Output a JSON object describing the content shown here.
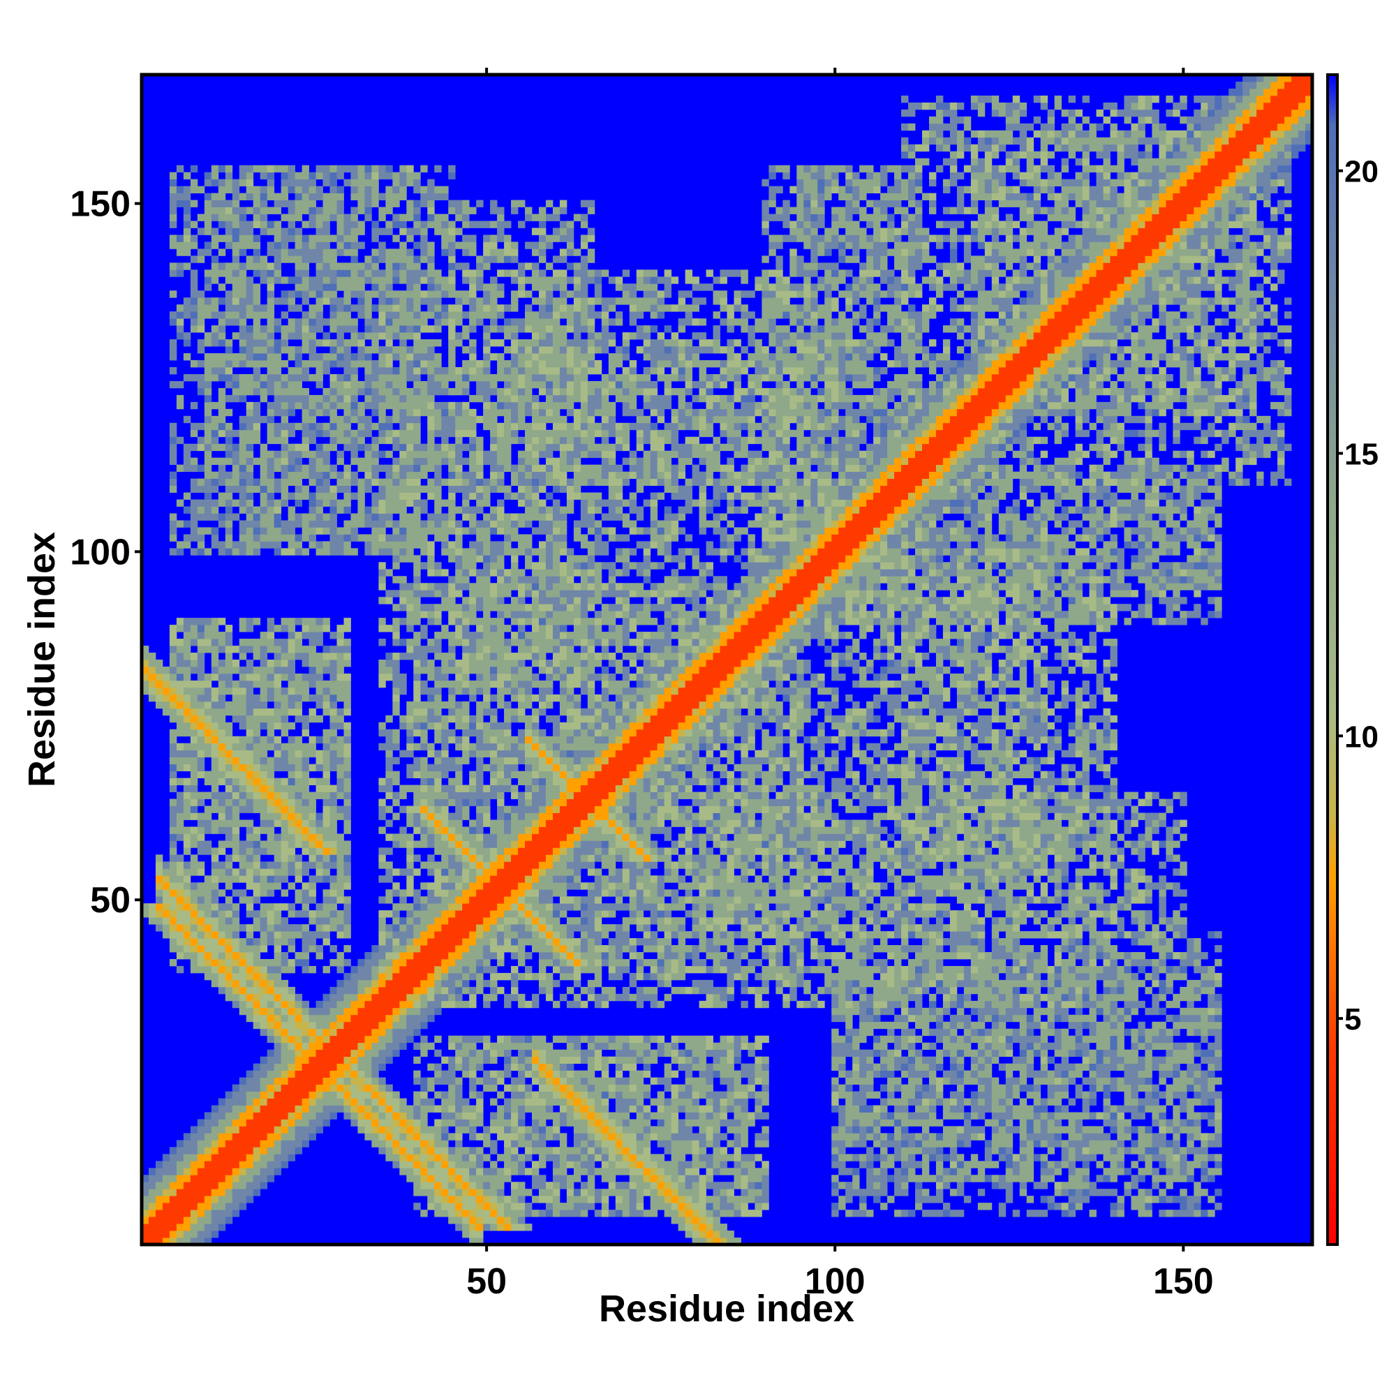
{
  "chart_data": {
    "type": "heatmap",
    "title": "",
    "xlabel": "Residue index",
    "ylabel": "Residue index",
    "n_residues": 168,
    "xlim": [
      1,
      168
    ],
    "ylim": [
      1,
      168
    ],
    "x_ticks": [
      50,
      100,
      150
    ],
    "y_ticks": [
      50,
      100,
      150
    ],
    "colorbar": {
      "ticks": [
        5,
        10,
        15,
        20
      ],
      "range": [
        1,
        21.7
      ],
      "stops": [
        {
          "value": 1,
          "color": "#ff0000"
        },
        {
          "value": 4.5,
          "color": "#ff3a00"
        },
        {
          "value": 7.5,
          "color": "#ffa000"
        },
        {
          "value": 8.6,
          "color": "#c8b44a"
        },
        {
          "value": 10.5,
          "color": "#a8bb86"
        },
        {
          "value": 14,
          "color": "#8fa88a"
        },
        {
          "value": 18,
          "color": "#6f86a8"
        },
        {
          "value": 20.8,
          "color": "#4f6fb8"
        },
        {
          "value": 21.7,
          "color": "#0000ff"
        }
      ]
    },
    "grid": false,
    "legend": "colorbar-right",
    "symmetric": true,
    "colors": {
      "background": "#0000ff",
      "diagonal": "#ff0000",
      "close_contact": "#ffa000",
      "mid": "#a8bb86",
      "far": "#7592a8"
    },
    "contact_bands": [
      {
        "kind": "diagonal",
        "from": 1,
        "to": 168,
        "value": 1.5
      },
      {
        "kind": "near-diagonal",
        "from": 1,
        "to": 168,
        "value": 6.5
      },
      {
        "kind": "hairpin",
        "center": [
          12,
          70
        ],
        "length": 14,
        "value": 6
      },
      {
        "kind": "hairpin",
        "center": [
          14,
          36
        ],
        "length": 12,
        "value": 6
      },
      {
        "kind": "hairpin",
        "center": [
          42,
          12
        ],
        "length": 10,
        "value": 6
      },
      {
        "kind": "hairpin",
        "center": [
          72,
          10
        ],
        "length": 12,
        "value": 6
      },
      {
        "kind": "cross",
        "center": [
          52,
          50
        ],
        "length": 10,
        "value": 7
      },
      {
        "kind": "cross",
        "center": [
          64,
          63
        ],
        "length": 8,
        "value": 7
      },
      {
        "kind": "cross",
        "center": [
          27,
          27
        ],
        "length": 8,
        "value": 7
      },
      {
        "kind": "region",
        "x": [
          5,
          42
        ],
        "y": [
          100,
          155
        ],
        "value": 13
      },
      {
        "kind": "region",
        "x": [
          35,
          95
        ],
        "y": [
          40,
          140
        ],
        "value": 12
      },
      {
        "kind": "region",
        "x": [
          80,
          150
        ],
        "y": [
          45,
          65
        ],
        "value": 12
      },
      {
        "kind": "region",
        "x": [
          90,
          110
        ],
        "y": [
          90,
          155
        ],
        "value": 12
      },
      {
        "kind": "region",
        "x": [
          105,
          155
        ],
        "y": [
          95,
          112
        ],
        "value": 13
      },
      {
        "kind": "region",
        "x": [
          100,
          155
        ],
        "y": [
          10,
          45
        ],
        "value": 13
      },
      {
        "kind": "region",
        "x": [
          5,
          30
        ],
        "y": [
          45,
          90
        ],
        "value": 12
      },
      {
        "kind": "region",
        "x": [
          40,
          90
        ],
        "y": [
          5,
          30
        ],
        "value": 12
      },
      {
        "kind": "region",
        "x": [
          110,
          160
        ],
        "y": [
          120,
          165
        ],
        "value": 12
      },
      {
        "kind": "region",
        "x": [
          110,
          130
        ],
        "y": [
          55,
          100
        ],
        "value": 12
      }
    ]
  }
}
